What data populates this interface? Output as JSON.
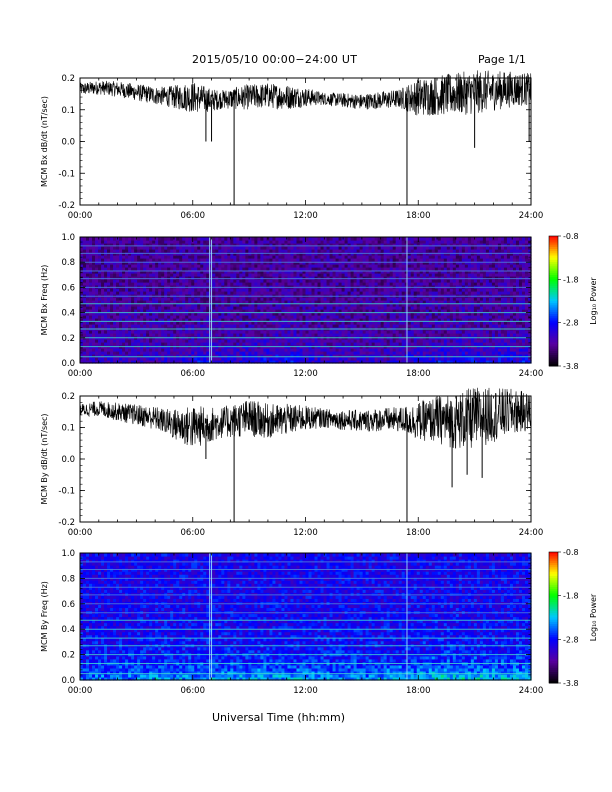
{
  "header": {
    "title": "2015/05/10  00:00−24:00 UT",
    "page": "Page 1/1"
  },
  "footer": {
    "xlabel": "Universal Time (hh:mm)"
  },
  "colorbar": {
    "label": "Log₁₀ Power",
    "ticks": [
      "-0.8",
      "-1.8",
      "-2.8",
      "-3.8"
    ],
    "colors": [
      "#ff0000",
      "#ffff00",
      "#00ff00",
      "#00c8ff",
      "#0000ff",
      "#5a00a0",
      "#000000"
    ]
  },
  "chart_data": [
    {
      "type": "line",
      "ylabel": "MCM Bx dB/dt (nT/sec)",
      "xlim": [
        0,
        24
      ],
      "ylim": [
        -0.2,
        0.2
      ],
      "xticks": [
        "00:00",
        "06:00",
        "12:00",
        "18:00",
        "24:00"
      ],
      "yticks": [
        "0.2",
        "0.1",
        "0.0",
        "-0.1",
        "-0.2"
      ],
      "baseline": [
        [
          0,
          0.165
        ],
        [
          1,
          0.17
        ],
        [
          2,
          0.165
        ],
        [
          3,
          0.155
        ],
        [
          4,
          0.145
        ],
        [
          5,
          0.14
        ],
        [
          6,
          0.14
        ],
        [
          7,
          0.13
        ],
        [
          8,
          0.135
        ],
        [
          9,
          0.14
        ],
        [
          10,
          0.145
        ],
        [
          11,
          0.14
        ],
        [
          12,
          0.14
        ],
        [
          13,
          0.135
        ],
        [
          14,
          0.13
        ],
        [
          15,
          0.125
        ],
        [
          16,
          0.13
        ],
        [
          17,
          0.135
        ],
        [
          18,
          0.14
        ],
        [
          19,
          0.145
        ],
        [
          20,
          0.15
        ],
        [
          21,
          0.155
        ],
        [
          22,
          0.16
        ],
        [
          23,
          0.165
        ],
        [
          24,
          0.165
        ]
      ],
      "spikes": [
        [
          6.7,
          0.0
        ],
        [
          7.0,
          0.0
        ],
        [
          8.2,
          -0.2
        ],
        [
          17.4,
          -0.2
        ],
        [
          21.0,
          -0.02
        ],
        [
          23.9,
          0.0
        ]
      ],
      "noise": [
        [
          0,
          0.02
        ],
        [
          4.5,
          0.03
        ],
        [
          6,
          0.05
        ],
        [
          7.5,
          0.03
        ],
        [
          9,
          0.04
        ],
        [
          11,
          0.04
        ],
        [
          13,
          0.02
        ],
        [
          17,
          0.03
        ],
        [
          18,
          0.06
        ],
        [
          21,
          0.07
        ],
        [
          24,
          0.05
        ]
      ]
    },
    {
      "type": "heatmap",
      "ylabel": "MCM Bx Freq (Hz)",
      "xlim": [
        0,
        24
      ],
      "ylim": [
        0,
        1.0
      ],
      "xticks": [
        "00:00",
        "06:00",
        "12:00",
        "18:00",
        "24:00"
      ],
      "yticks": [
        "1.0",
        "0.8",
        "0.6",
        "0.4",
        "0.2",
        "0.0"
      ],
      "zlim": [
        -3.8,
        -0.8
      ],
      "harmonics_hz": [
        0.05,
        0.13,
        0.2,
        0.27,
        0.33,
        0.4,
        0.47,
        0.53,
        0.6,
        0.67,
        0.73,
        0.8,
        0.87,
        0.93
      ],
      "vertical_lines_hr": [
        6.9,
        7.0,
        17.4
      ],
      "activity": [
        [
          0,
          0.1
        ],
        [
          5,
          0.2
        ],
        [
          6.5,
          0.35
        ],
        [
          7.5,
          0.25
        ],
        [
          11,
          0.4
        ],
        [
          12.5,
          0.2
        ],
        [
          16,
          0.15
        ],
        [
          20,
          0.4
        ],
        [
          24,
          0.35
        ]
      ],
      "background": -3.3
    },
    {
      "type": "line",
      "ylabel": "MCM By dB/dt (nT/sec)",
      "xlim": [
        0,
        24
      ],
      "ylim": [
        -0.2,
        0.2
      ],
      "xticks": [
        "00:00",
        "06:00",
        "12:00",
        "18:00",
        "24:00"
      ],
      "yticks": [
        "0.2",
        "0.1",
        "0.0",
        "-0.1",
        "-0.2"
      ],
      "baseline": [
        [
          0,
          0.155
        ],
        [
          1,
          0.16
        ],
        [
          2,
          0.15
        ],
        [
          3,
          0.14
        ],
        [
          4,
          0.13
        ],
        [
          5,
          0.11
        ],
        [
          6,
          0.1
        ],
        [
          7,
          0.11
        ],
        [
          8,
          0.12
        ],
        [
          9,
          0.13
        ],
        [
          10,
          0.12
        ],
        [
          11,
          0.125
        ],
        [
          12,
          0.13
        ],
        [
          13,
          0.13
        ],
        [
          14,
          0.125
        ],
        [
          15,
          0.12
        ],
        [
          16,
          0.125
        ],
        [
          17,
          0.125
        ],
        [
          18,
          0.12
        ],
        [
          19,
          0.125
        ],
        [
          20,
          0.12
        ],
        [
          21,
          0.13
        ],
        [
          22,
          0.14
        ],
        [
          23,
          0.15
        ],
        [
          24,
          0.15
        ]
      ],
      "spikes": [
        [
          6.7,
          0.0
        ],
        [
          8.2,
          -0.2
        ],
        [
          17.4,
          -0.2
        ],
        [
          19.8,
          -0.09
        ],
        [
          20.6,
          -0.05
        ],
        [
          21.4,
          -0.06
        ]
      ],
      "noise": [
        [
          0,
          0.02
        ],
        [
          4.5,
          0.04
        ],
        [
          6,
          0.07
        ],
        [
          7.5,
          0.05
        ],
        [
          9,
          0.06
        ],
        [
          11,
          0.05
        ],
        [
          13,
          0.03
        ],
        [
          17,
          0.04
        ],
        [
          18,
          0.06
        ],
        [
          20,
          0.09
        ],
        [
          21,
          0.1
        ],
        [
          24,
          0.06
        ]
      ]
    },
    {
      "type": "heatmap",
      "ylabel": "MCM By Freq (Hz)",
      "xlim": [
        0,
        24
      ],
      "ylim": [
        0,
        1.0
      ],
      "xticks": [
        "00:00",
        "06:00",
        "12:00",
        "18:00",
        "24:00"
      ],
      "yticks": [
        "1.0",
        "0.8",
        "0.6",
        "0.4",
        "0.2",
        "0.0"
      ],
      "zlim": [
        -3.8,
        -0.8
      ],
      "harmonics_hz": [
        0.05,
        0.13,
        0.2,
        0.27,
        0.33,
        0.4,
        0.47,
        0.53,
        0.6,
        0.67,
        0.73,
        0.8,
        0.87,
        0.93
      ],
      "vertical_lines_hr": [
        6.9,
        7.0,
        17.4
      ],
      "activity": [
        [
          0,
          0.3
        ],
        [
          5,
          0.4
        ],
        [
          6.5,
          0.45
        ],
        [
          7.5,
          0.4
        ],
        [
          11,
          0.45
        ],
        [
          12.5,
          0.4
        ],
        [
          16,
          0.4
        ],
        [
          20,
          0.55
        ],
        [
          24,
          0.5
        ]
      ],
      "background": -2.9
    }
  ]
}
